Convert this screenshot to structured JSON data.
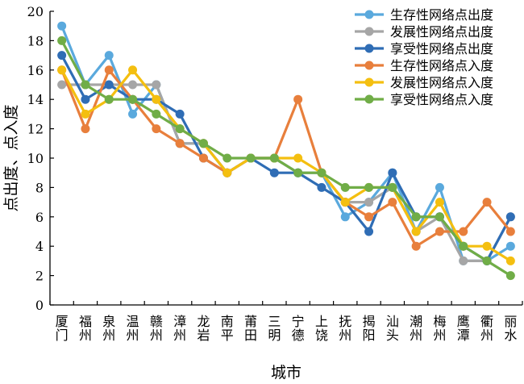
{
  "chart_data": {
    "type": "line",
    "title": "",
    "xlabel": "城市",
    "ylabel": "点出度、点入度",
    "ylim": [
      0,
      20
    ],
    "yticks": [
      0,
      2,
      4,
      6,
      8,
      10,
      12,
      14,
      16,
      18,
      20
    ],
    "grid": false,
    "legend_position": "top-right",
    "categories": [
      "厦门",
      "福州",
      "泉州",
      "温州",
      "赣州",
      "漳州",
      "龙岩",
      "南平",
      "莆田",
      "三明",
      "宁德",
      "上饶",
      "抚州",
      "揭阳",
      "汕头",
      "潮州",
      "梅州",
      "鹰潭",
      "衢州",
      "丽水"
    ],
    "series": [
      {
        "name": "生存性网络点出度",
        "color": "#5aa9dd",
        "values": [
          19,
          15,
          17,
          13,
          15,
          11,
          11,
          9,
          10,
          10,
          9,
          9,
          6,
          7,
          9,
          5,
          8,
          3,
          3,
          4
        ]
      },
      {
        "name": "发展性网络点出度",
        "color": "#a6a6a6",
        "values": [
          15,
          15,
          15,
          15,
          15,
          11,
          11,
          9,
          10,
          10,
          9,
          9,
          7,
          7,
          8,
          5,
          6,
          3,
          3,
          6
        ]
      },
      {
        "name": "享受性网络点出度",
        "color": "#2f6db5",
        "values": [
          17,
          14,
          15,
          14,
          14,
          13,
          10,
          9,
          10,
          9,
          9,
          8,
          7,
          5,
          9,
          6,
          6,
          4,
          3,
          6
        ]
      },
      {
        "name": "生存性网络点入度",
        "color": "#e87f3c",
        "values": [
          16,
          12,
          16,
          14,
          12,
          11,
          10,
          9,
          10,
          10,
          14,
          9,
          7,
          6,
          7,
          4,
          5,
          5,
          7,
          5
        ]
      },
      {
        "name": "发展性网络点入度",
        "color": "#f4bf10",
        "values": [
          16,
          13,
          14,
          16,
          14,
          12,
          11,
          9,
          10,
          10,
          10,
          9,
          7,
          8,
          8,
          5,
          7,
          4,
          4,
          3
        ]
      },
      {
        "name": "享受性网络点入度",
        "color": "#70ad47",
        "values": [
          18,
          15,
          14,
          14,
          13,
          12,
          11,
          10,
          10,
          10,
          9,
          9,
          8,
          8,
          8,
          6,
          6,
          4,
          3,
          2
        ]
      }
    ]
  }
}
